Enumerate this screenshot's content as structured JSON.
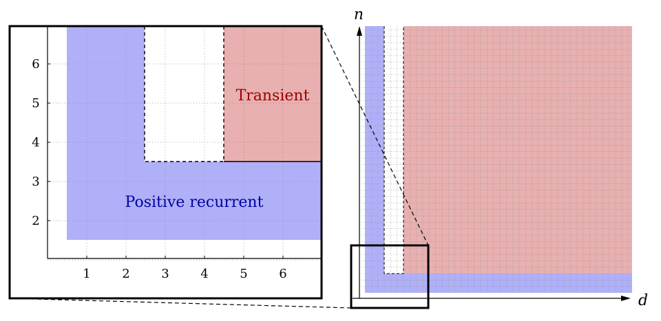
{
  "zoom_panel": {
    "x_ticks": [
      "1",
      "2",
      "3",
      "4",
      "5",
      "6"
    ],
    "y_ticks": [
      "2",
      "3",
      "4",
      "5",
      "6"
    ],
    "labels": {
      "transient": "Transient",
      "positive_recurrent": "Positive recurrent"
    }
  },
  "full_panel": {
    "x_axis_label": "d",
    "y_axis_label": "n"
  },
  "colors": {
    "positive_recurrent_fill": "#b0b0f8",
    "transient_fill": "#e8b0b0",
    "transient_text": "#a00000",
    "positive_recurrent_text": "#0000a0",
    "grid": "#8a8a8a"
  }
}
